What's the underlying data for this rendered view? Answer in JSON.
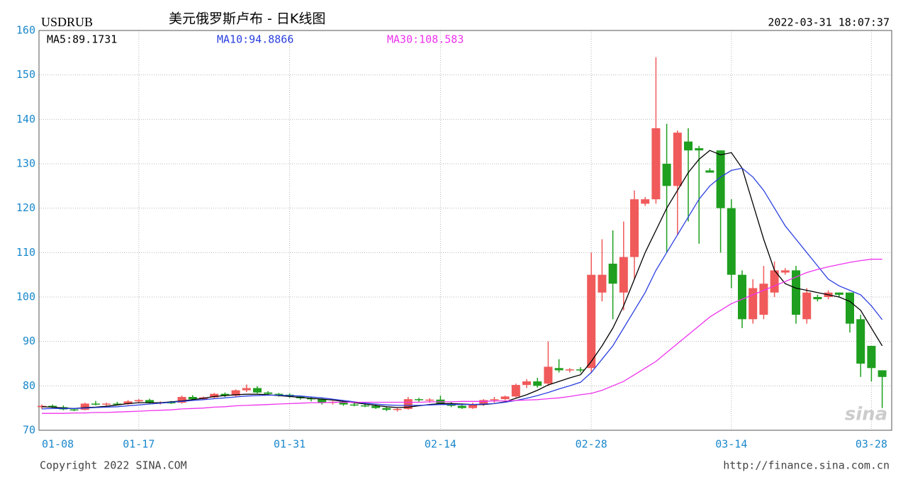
{
  "chart_data": {
    "type": "candlestick",
    "symbol": "USDRUB",
    "title": "美元俄罗斯卢布  -  日K线图",
    "timestamp": "2022-03-31 18:07:37",
    "copyright": "Copyright 2022 SINA.COM",
    "source": "http://finance.sina.com.cn",
    "watermark": "sina",
    "up_color": "#f05a5a",
    "down_color": "#1f9f1f",
    "grid": true,
    "ylim": [
      70,
      160
    ],
    "yticks": [
      70,
      80,
      90,
      100,
      110,
      120,
      130,
      140,
      150,
      160
    ],
    "categories": [
      "01-08",
      null,
      null,
      null,
      null,
      null,
      null,
      null,
      null,
      "01-17",
      null,
      null,
      null,
      null,
      null,
      null,
      null,
      null,
      null,
      null,
      null,
      null,
      null,
      "01-31",
      null,
      null,
      null,
      null,
      null,
      null,
      null,
      null,
      null,
      null,
      null,
      null,
      null,
      "02-14",
      null,
      null,
      null,
      null,
      null,
      null,
      null,
      null,
      null,
      null,
      null,
      null,
      null,
      "02-28",
      null,
      null,
      null,
      null,
      null,
      null,
      null,
      null,
      null,
      null,
      null,
      null,
      "03-14",
      null,
      null,
      null,
      null,
      null,
      null,
      null,
      null,
      null,
      null,
      null,
      null,
      "03-28",
      null
    ],
    "open": [
      75.2,
      75.5,
      75.2,
      74.7,
      74.6,
      76.0,
      75.8,
      76.0,
      75.9,
      76.5,
      76.8,
      76.2,
      76.3,
      76.2,
      77.5,
      77.0,
      77.4,
      78.2,
      77.8,
      79.0,
      79.5,
      78.5,
      78.2,
      78.0,
      77.6,
      77.2,
      77.0,
      76.2,
      76.4,
      75.8,
      75.6,
      75.5,
      75.0,
      74.6,
      74.8,
      77.0,
      76.8,
      76.9,
      76.0,
      75.5,
      75.0,
      75.8,
      76.8,
      77.0,
      77.6,
      80.2,
      81.0,
      80.5,
      84.0,
      83.5,
      83.7,
      84.0,
      101.0,
      107.5,
      101.0,
      109.0,
      121.0,
      122.0,
      130.0,
      125.0,
      135.0,
      133.5,
      128.5,
      133.0,
      120.0,
      105.0,
      95.0,
      96.0,
      101.0,
      105.5,
      106.0,
      95.0,
      100.0,
      100.0,
      101.0,
      101.0,
      95.0,
      89.0,
      83.5
    ],
    "high": [
      75.8,
      75.8,
      75.6,
      75.0,
      76.2,
      76.6,
      76.2,
      76.4,
      76.8,
      77.0,
      77.1,
      76.5,
      76.6,
      77.8,
      77.9,
      77.6,
      78.4,
      78.5,
      79.2,
      80.3,
      79.9,
      78.8,
      78.4,
      78.3,
      77.8,
      77.5,
      77.2,
      76.6,
      76.6,
      76.2,
      76.0,
      75.8,
      75.3,
      75.0,
      77.5,
      77.3,
      77.2,
      77.8,
      76.4,
      76.0,
      76.2,
      77.0,
      77.5,
      77.8,
      80.5,
      81.5,
      81.8,
      90.0,
      86.0,
      84.0,
      84.2,
      110.0,
      113.0,
      115.0,
      117.0,
      124.0,
      122.5,
      154.0,
      139.0,
      137.5,
      138.0,
      134.0,
      129.0,
      133.0,
      122.0,
      106.0,
      104.0,
      107.0,
      108.0,
      106.5,
      107.0,
      102.0,
      100.5,
      101.5,
      101.0,
      101.0,
      96.0,
      89.0,
      83.5
    ],
    "low": [
      74.8,
      75.0,
      74.5,
      74.3,
      74.5,
      75.6,
      75.5,
      75.6,
      75.7,
      76.2,
      76.0,
      75.8,
      75.9,
      76.0,
      76.9,
      76.8,
      77.2,
      77.5,
      77.6,
      78.6,
      78.3,
      77.8,
      77.6,
      77.3,
      76.9,
      76.5,
      75.8,
      75.8,
      75.5,
      75.4,
      75.2,
      74.8,
      74.3,
      74.2,
      74.6,
      76.4,
      76.2,
      75.8,
      75.2,
      74.8,
      74.8,
      75.5,
      76.2,
      76.8,
      77.4,
      79.5,
      79.6,
      80.0,
      83.0,
      83.0,
      83.0,
      83.0,
      99.0,
      95.0,
      97.0,
      104.0,
      120.5,
      121.0,
      110.0,
      114.0,
      117.0,
      112.0,
      128.0,
      110.0,
      102.0,
      93.0,
      94.0,
      95.0,
      100.0,
      105.0,
      94.0,
      94.0,
      99.0,
      99.5,
      100.0,
      92.0,
      82.0,
      81.0,
      75.0
    ],
    "close": [
      75.5,
      75.2,
      74.7,
      74.6,
      76.0,
      75.8,
      76.0,
      75.9,
      76.5,
      76.8,
      76.2,
      76.3,
      76.2,
      77.5,
      77.0,
      77.4,
      78.2,
      77.8,
      79.0,
      79.5,
      78.5,
      78.2,
      78.0,
      77.6,
      77.2,
      77.0,
      76.2,
      76.4,
      75.8,
      75.6,
      75.5,
      75.0,
      74.6,
      74.8,
      77.0,
      76.8,
      76.9,
      76.0,
      75.5,
      75.0,
      75.8,
      76.8,
      77.0,
      77.6,
      80.2,
      81.0,
      80.0,
      84.3,
      83.5,
      83.7,
      83.5,
      105.0,
      105.0,
      103.0,
      109.0,
      122.0,
      122.0,
      138.0,
      125.0,
      137.0,
      133.0,
      133.0,
      128.0,
      120.0,
      105.0,
      95.0,
      102.0,
      103.0,
      106.0,
      106.0,
      96.0,
      101.0,
      99.5,
      101.0,
      100.5,
      94.0,
      85.0,
      84.0,
      82.0
    ],
    "series": [
      {
        "name": "MA5:89.1731",
        "color": "#000000",
        "values": [
          75.3,
          75.2,
          75.0,
          74.9,
          75.1,
          75.2,
          75.4,
          75.7,
          76.0,
          76.2,
          76.2,
          76.2,
          76.4,
          76.6,
          76.9,
          77.2,
          77.6,
          77.8,
          78.0,
          78.1,
          78.1,
          78.0,
          77.8,
          77.6,
          77.4,
          77.2,
          77.0,
          76.8,
          76.5,
          76.2,
          75.9,
          75.6,
          75.3,
          75.1,
          75.2,
          75.5,
          75.8,
          76.0,
          76.0,
          75.9,
          75.8,
          75.8,
          76.0,
          76.4,
          77.2,
          78.0,
          79.0,
          80.2,
          81.0,
          81.8,
          82.5,
          85.5,
          89,
          93,
          98,
          104,
          110,
          115,
          120,
          124,
          128,
          131,
          133,
          132,
          132.5,
          129,
          121,
          113,
          106,
          103,
          102,
          101.5,
          101,
          100.5,
          100,
          99,
          97,
          93,
          89
        ]
      },
      {
        "name": "MA10:94.8866",
        "color": "#2a3fe0",
        "values": [
          74.8,
          74.9,
          74.9,
          74.9,
          75.0,
          75.1,
          75.2,
          75.3,
          75.5,
          75.7,
          75.9,
          76.1,
          76.3,
          76.5,
          76.7,
          76.9,
          77.1,
          77.3,
          77.5,
          77.7,
          77.8,
          77.9,
          77.9,
          77.8,
          77.7,
          77.5,
          77.3,
          77.0,
          76.7,
          76.4,
          76.1,
          75.9,
          75.7,
          75.6,
          75.6,
          75.6,
          75.7,
          75.8,
          75.8,
          75.8,
          75.8,
          75.9,
          76.0,
          76.3,
          76.7,
          77.2,
          77.8,
          78.5,
          79.3,
          80.0,
          80.8,
          83,
          86,
          89,
          93,
          97,
          101,
          106,
          110,
          114,
          118,
          122,
          125,
          127,
          128.5,
          129,
          127,
          124,
          120,
          116,
          113,
          110,
          107,
          104,
          102.5,
          101.5,
          100.5,
          98,
          94.9
        ]
      },
      {
        "name": "MA30:108.583",
        "color": "#ee33ee",
        "values": [
          73.8,
          73.8,
          73.8,
          73.9,
          73.9,
          74.0,
          74.0,
          74.1,
          74.2,
          74.3,
          74.4,
          74.5,
          74.6,
          74.8,
          74.9,
          75.0,
          75.2,
          75.3,
          75.5,
          75.6,
          75.7,
          75.8,
          75.9,
          76.0,
          76.1,
          76.2,
          76.2,
          76.3,
          76.3,
          76.3,
          76.3,
          76.3,
          76.3,
          76.3,
          76.3,
          76.3,
          76.4,
          76.4,
          76.4,
          76.5,
          76.5,
          76.5,
          76.6,
          76.6,
          76.7,
          76.8,
          76.9,
          77.1,
          77.3,
          77.6,
          78.0,
          78.3,
          79,
          80,
          81,
          82.5,
          84,
          85.5,
          87.5,
          89.5,
          91.5,
          93.5,
          95.5,
          97,
          98.5,
          99.5,
          100.5,
          101.5,
          102.5,
          103.5,
          104.5,
          105.5,
          106.2,
          106.8,
          107.3,
          107.8,
          108.2,
          108.5,
          108.5
        ]
      }
    ]
  }
}
